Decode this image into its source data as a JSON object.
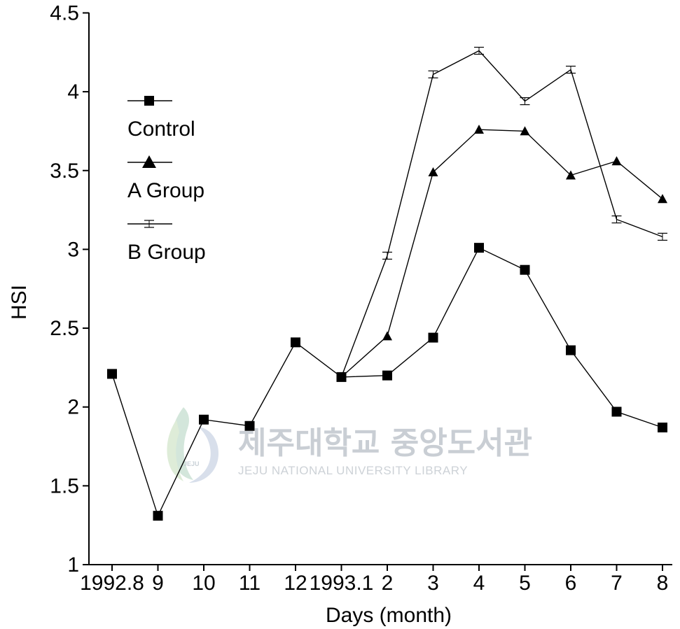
{
  "chart_data": {
    "type": "line",
    "title": "",
    "xlabel": "Days (month)",
    "ylabel": "HSI",
    "ylim": [
      1,
      4.5
    ],
    "yticks": [
      "1",
      "1.5",
      "2",
      "2.5",
      "3",
      "3.5",
      "4",
      "4.5"
    ],
    "categories": [
      "1992.8",
      "9",
      "10",
      "11",
      "12",
      "1993.1",
      "2",
      "3",
      "4",
      "5",
      "6",
      "7",
      "8"
    ],
    "grid": false,
    "legend_position": "top-left",
    "series": [
      {
        "name": "Control",
        "marker": "square",
        "values": [
          2.21,
          1.31,
          1.92,
          1.88,
          2.41,
          2.19,
          2.2,
          2.44,
          3.01,
          2.87,
          2.36,
          1.97,
          1.87
        ]
      },
      {
        "name": "A Group",
        "marker": "triangle",
        "values": [
          null,
          null,
          null,
          null,
          null,
          2.19,
          2.45,
          3.49,
          3.76,
          3.75,
          3.47,
          3.56,
          3.32
        ]
      },
      {
        "name": "B Group",
        "marker": "bar",
        "values": [
          null,
          null,
          null,
          null,
          null,
          2.19,
          2.96,
          4.11,
          4.26,
          3.94,
          4.14,
          3.19,
          3.08
        ]
      }
    ]
  },
  "watermark": {
    "korean": "제주대학교 중앙도서관",
    "english": "JEJU NATIONAL UNIVERSITY LIBRARY",
    "logo_text": "JEJU"
  }
}
